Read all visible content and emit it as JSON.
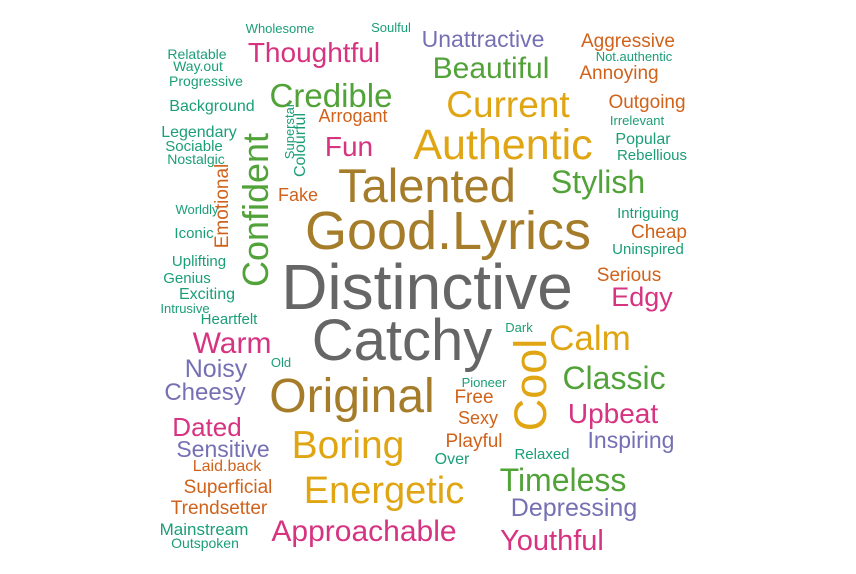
{
  "chart_data": {
    "type": "wordcloud",
    "title": "",
    "palette": {
      "green": "#52a23a",
      "orange": "#d0621b",
      "purple": "#7570b3",
      "magenta": "#d63381",
      "gold": "#e0a513",
      "brown": "#a57c2a",
      "gray": "#666666",
      "teal": "#1b9e77"
    },
    "words": [
      {
        "text": "Distinctive",
        "weight": 100,
        "color": "gray"
      },
      {
        "text": "Catchy",
        "weight": 90,
        "color": "gray"
      },
      {
        "text": "Good.Lyrics",
        "weight": 82,
        "color": "brown"
      },
      {
        "text": "Original",
        "weight": 72,
        "color": "brown"
      },
      {
        "text": "Talented",
        "weight": 70,
        "color": "brown"
      },
      {
        "text": "Cool",
        "weight": 66,
        "color": "gold"
      },
      {
        "text": "Authentic",
        "weight": 62,
        "color": "gold"
      },
      {
        "text": "Boring",
        "weight": 56,
        "color": "gold"
      },
      {
        "text": "Energetic",
        "weight": 54,
        "color": "gold"
      },
      {
        "text": "Current",
        "weight": 52,
        "color": "gold"
      },
      {
        "text": "Confident",
        "weight": 50,
        "color": "green"
      },
      {
        "text": "Calm",
        "weight": 48,
        "color": "gold"
      },
      {
        "text": "Credible",
        "weight": 44,
        "color": "green"
      },
      {
        "text": "Timeless",
        "weight": 42,
        "color": "green"
      },
      {
        "text": "Stylish",
        "weight": 42,
        "color": "green"
      },
      {
        "text": "Classic",
        "weight": 42,
        "color": "green"
      },
      {
        "text": "Beautiful",
        "weight": 40,
        "color": "green"
      },
      {
        "text": "Approachable",
        "weight": 40,
        "color": "magenta"
      },
      {
        "text": "Warm",
        "weight": 40,
        "color": "magenta"
      },
      {
        "text": "Youthful",
        "weight": 38,
        "color": "magenta"
      },
      {
        "text": "Thoughtful",
        "weight": 36,
        "color": "magenta"
      },
      {
        "text": "Upbeat",
        "weight": 36,
        "color": "magenta"
      },
      {
        "text": "Fun",
        "weight": 36,
        "color": "magenta"
      },
      {
        "text": "Edgy",
        "weight": 34,
        "color": "magenta"
      },
      {
        "text": "Dated",
        "weight": 32,
        "color": "magenta"
      },
      {
        "text": "Depressing",
        "weight": 30,
        "color": "purple"
      },
      {
        "text": "Noisy",
        "weight": 30,
        "color": "purple"
      },
      {
        "text": "Cheesy",
        "weight": 28,
        "color": "purple"
      },
      {
        "text": "Unattractive",
        "weight": 27,
        "color": "purple"
      },
      {
        "text": "Inspiring",
        "weight": 27,
        "color": "purple"
      },
      {
        "text": "Sensitive",
        "weight": 27,
        "color": "purple"
      },
      {
        "text": "Emotional",
        "weight": 20,
        "color": "orange"
      },
      {
        "text": "Aggressive",
        "weight": 20,
        "color": "orange"
      },
      {
        "text": "Superficial",
        "weight": 20,
        "color": "orange"
      },
      {
        "text": "Trendsetter",
        "weight": 20,
        "color": "orange"
      },
      {
        "text": "Playful",
        "weight": 20,
        "color": "orange"
      },
      {
        "text": "Free",
        "weight": 20,
        "color": "orange"
      },
      {
        "text": "Cheap",
        "weight": 20,
        "color": "orange"
      },
      {
        "text": "Serious",
        "weight": 20,
        "color": "orange"
      },
      {
        "text": "Outgoing",
        "weight": 20,
        "color": "orange"
      },
      {
        "text": "Annoying",
        "weight": 19,
        "color": "orange"
      },
      {
        "text": "Sexy",
        "weight": 18,
        "color": "orange"
      },
      {
        "text": "Arrogant",
        "weight": 17,
        "color": "orange"
      },
      {
        "text": "Fake",
        "weight": 17,
        "color": "orange"
      },
      {
        "text": "Laid.back",
        "weight": 15,
        "color": "orange"
      },
      {
        "text": "Colourful",
        "weight": 14,
        "color": "teal"
      },
      {
        "text": "Background",
        "weight": 14,
        "color": "teal"
      },
      {
        "text": "Mainstream",
        "weight": 16,
        "color": "teal"
      },
      {
        "text": "Popular",
        "weight": 15,
        "color": "teal"
      },
      {
        "text": "Over",
        "weight": 14,
        "color": "teal"
      },
      {
        "text": "Relaxed",
        "weight": 13,
        "color": "teal"
      },
      {
        "text": "Legendary",
        "weight": 14,
        "color": "teal"
      },
      {
        "text": "Exciting",
        "weight": 14,
        "color": "teal"
      },
      {
        "text": "Uplifting",
        "weight": 13,
        "color": "teal"
      },
      {
        "text": "Genius",
        "weight": 13,
        "color": "teal"
      },
      {
        "text": "Iconic",
        "weight": 13,
        "color": "teal"
      },
      {
        "text": "Rebellious",
        "weight": 13,
        "color": "teal"
      },
      {
        "text": "Intriguing",
        "weight": 13,
        "color": "teal"
      },
      {
        "text": "Uninspired",
        "weight": 13,
        "color": "teal"
      },
      {
        "text": "Heartfelt",
        "weight": 13,
        "color": "teal"
      },
      {
        "text": "Sociable",
        "weight": 12,
        "color": "teal"
      },
      {
        "text": "Nostalgic",
        "weight": 11,
        "color": "teal"
      },
      {
        "text": "Progressive",
        "weight": 11,
        "color": "teal"
      },
      {
        "text": "Way.out",
        "weight": 11,
        "color": "teal"
      },
      {
        "text": "Relatable",
        "weight": 10,
        "color": "teal"
      },
      {
        "text": "Outspoken",
        "weight": 10,
        "color": "teal"
      },
      {
        "text": "Worldly",
        "weight": 9,
        "color": "teal"
      },
      {
        "text": "Intrusive",
        "weight": 9,
        "color": "teal"
      },
      {
        "text": "Wholesome",
        "weight": 9,
        "color": "teal"
      },
      {
        "text": "Soulful",
        "weight": 9,
        "color": "teal"
      },
      {
        "text": "Not.authentic",
        "weight": 9,
        "color": "teal"
      },
      {
        "text": "Irrelevant",
        "weight": 9,
        "color": "teal"
      },
      {
        "text": "Superstar",
        "weight": 9,
        "color": "teal"
      },
      {
        "text": "Pioneer",
        "weight": 9,
        "color": "teal"
      },
      {
        "text": "Dark",
        "weight": 9,
        "color": "teal"
      },
      {
        "text": "Old",
        "weight": 9,
        "color": "teal"
      }
    ]
  }
}
